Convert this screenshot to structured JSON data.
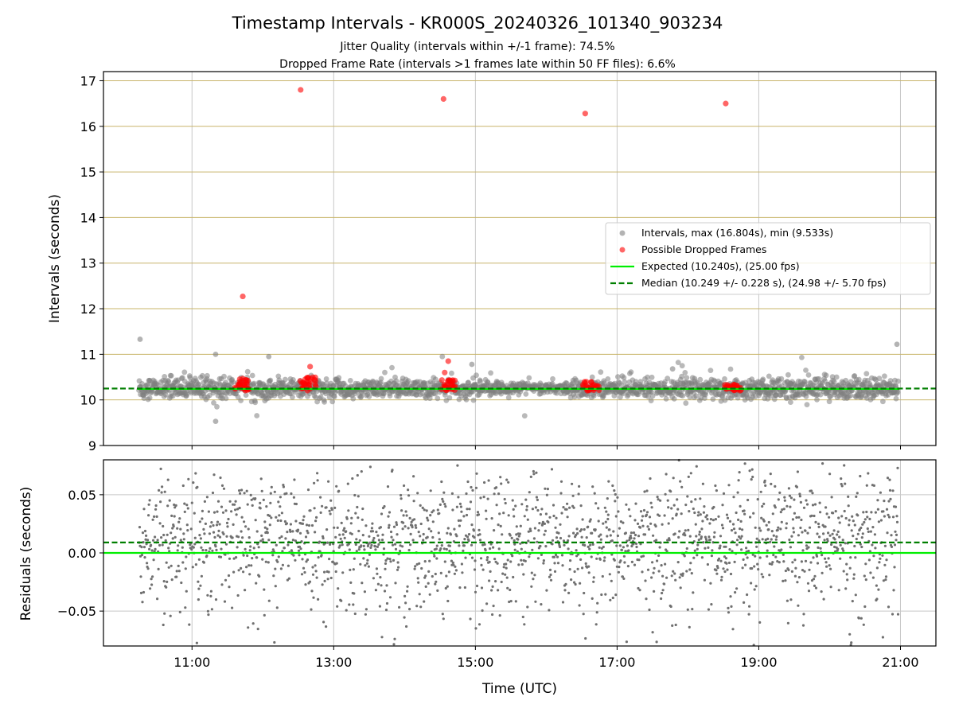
{
  "title": "Timestamp Intervals - KR000S_20240326_101340_903234",
  "subtitle_line1": "Jitter Quality (intervals within +/-1 frame): 74.5%",
  "subtitle_line2": "Dropped Frame Rate (intervals >1 frames late within 50 FF files): 6.6%",
  "colors": {
    "intervals": "#808080",
    "dropped": "#ff0000",
    "expected": "#00ee00",
    "median": "#007f00",
    "hgrid_top": "#c8b46a",
    "grid": "#c8c8c8"
  },
  "chart_data": [
    {
      "type": "scatter",
      "panel": "intervals",
      "ylabel": "Intervals (seconds)",
      "xlabel": "",
      "ylim": [
        9,
        17.2
      ],
      "yticks": [
        "9",
        "10",
        "11",
        "12",
        "13",
        "14",
        "15",
        "16",
        "17"
      ],
      "grid": true,
      "legend_position": "center-right",
      "legend": [
        "Intervals, max (16.804s), min (9.533s)",
        "Possible Dropped Frames",
        "Expected (10.240s), (25.00 fps)",
        "Median (10.249 +/- 0.228 s), (24.98 +/- 5.70 fps)"
      ],
      "expected": 10.24,
      "median": 10.249,
      "dropped_frames_outliers": [
        {
          "x": "11:43",
          "y": 12.27
        },
        {
          "x": "12:32",
          "y": 16.8
        },
        {
          "x": "14:33",
          "y": 16.6
        },
        {
          "x": "16:33",
          "y": 16.28
        },
        {
          "x": "18:32",
          "y": 16.5
        },
        {
          "x": "12:40",
          "y": 10.73
        },
        {
          "x": "14:37",
          "y": 10.85
        },
        {
          "x": "14:34",
          "y": 10.6
        }
      ],
      "dropped_frame_clusters": [
        {
          "x": "11:43",
          "y_range": [
            10.2,
            10.48
          ]
        },
        {
          "x": "12:38",
          "y_range": [
            10.2,
            10.5
          ]
        },
        {
          "x": "14:37",
          "y_range": [
            10.2,
            10.45
          ]
        },
        {
          "x": "16:38",
          "y_range": [
            10.2,
            10.4
          ]
        },
        {
          "x": "18:38",
          "y_range": [
            10.2,
            10.35
          ]
        }
      ],
      "interval_outliers": [
        {
          "x": "10:16",
          "y": 11.33
        },
        {
          "x": "20:57",
          "y": 11.22
        },
        {
          "x": "11:20",
          "y": 11.0
        },
        {
          "x": "12:05",
          "y": 10.95
        },
        {
          "x": "11:20",
          "y": 9.53
        },
        {
          "x": "14:57",
          "y": 10.78
        },
        {
          "x": "17:47",
          "y": 10.68
        }
      ]
    },
    {
      "type": "scatter",
      "panel": "residuals",
      "ylabel": "Residuals (seconds)",
      "xlabel": "Time (UTC)",
      "ylim": [
        -0.08,
        0.08
      ],
      "yticks": [
        "−0.05",
        "0.00",
        "0.05"
      ],
      "xticks": [
        "11:00",
        "13:00",
        "15:00",
        "17:00",
        "19:00",
        "21:00"
      ],
      "xlim": [
        "09:45",
        "21:30"
      ],
      "data_x_range": [
        "10:15",
        "20:58"
      ],
      "expected_line": 0.0,
      "median_line": 0.009,
      "grid": true
    }
  ]
}
